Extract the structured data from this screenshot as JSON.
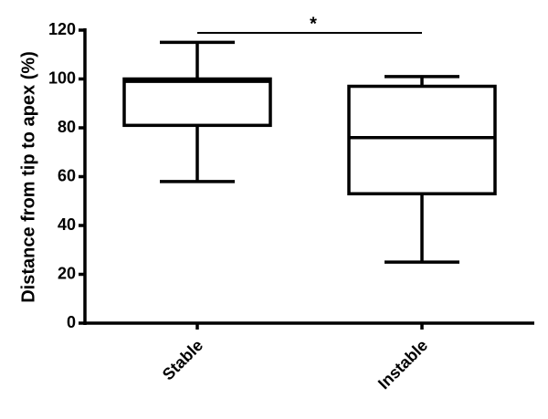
{
  "chart_data": {
    "type": "box",
    "y_label": "Distance from tip to apex (%)",
    "categories": [
      "Stable",
      "Instable"
    ],
    "stats": [
      {
        "min": 58,
        "q1": 81,
        "median": 99,
        "q3": 100,
        "max": 115
      },
      {
        "min": 25,
        "q1": 53,
        "median": 76,
        "q3": 97,
        "max": 101
      }
    ],
    "annotation": "*",
    "color": "#000000",
    "ylim": [
      0,
      120
    ],
    "yticks": [
      0,
      20,
      40,
      60,
      80,
      100,
      120
    ],
    "grid": false
  }
}
